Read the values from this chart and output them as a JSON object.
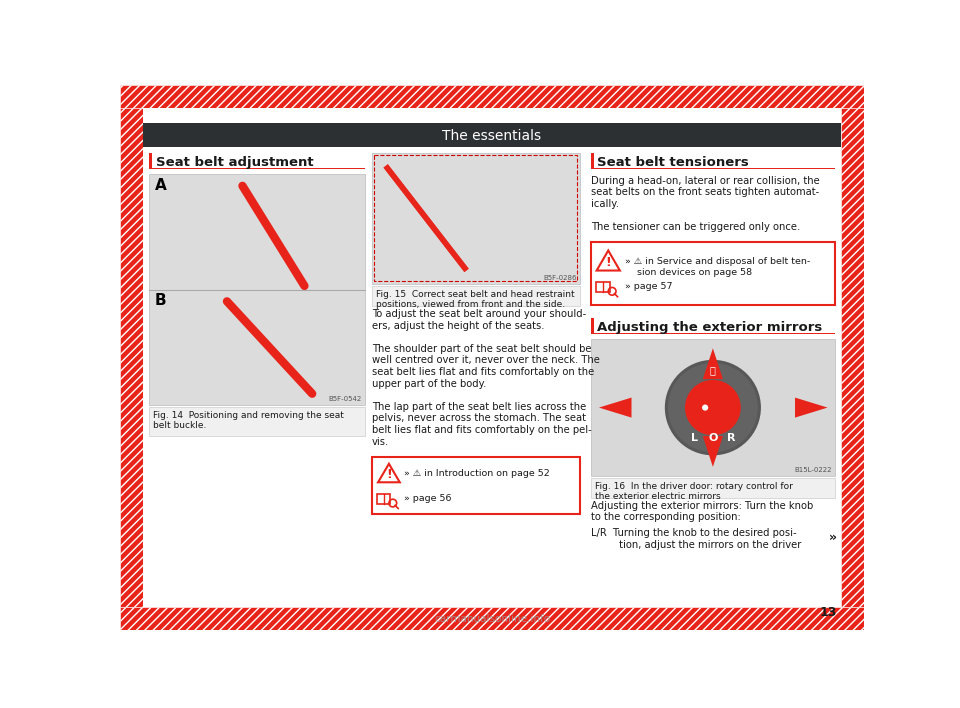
{
  "title": "The essentials",
  "title_bg": "#2d3033",
  "title_color": "#ffffff",
  "page_bg": "#ffffff",
  "hatch_color": "#e8241a",
  "border_color": "#e8241a",
  "text_color": "#1a1a1a",
  "red_color": "#e8241a",
  "section1_title": "Seat belt adjustment",
  "section2_title": "Seat belt tensioners",
  "section3_title": "Adjusting the exterior mirrors",
  "fig14_caption": "Fig. 14  Positioning and removing the seat\nbelt buckle.",
  "fig15_caption": "Fig. 15  Correct seat belt and head restraint\npositions, viewed from front and the side.",
  "fig16_caption": "Fig. 16  In the driver door: rotary control for\nthe exterior electric mirrors",
  "body_text_center": "To adjust the seat belt around your should-\ners, adjust the height of the seats.\n\nThe shoulder part of the seat belt should be\nwell centred over it, never over the neck. The\nseat belt lies flat and fits comfortably on the\nupper part of the body.\n\nThe lap part of the seat belt lies across the\npelvis, never across the stomach. The seat\nbelt lies flat and fits comfortably on the pel-\nvis.",
  "seat_belt_tensioners_body": "During a head-on, lateral or rear collision, the\nseat belts on the front seats tighten automat-\nically.\n\nThe tensioner can be triggered only once.",
  "warning_box_center_line1": "» ⚠ in Introduction on page 52",
  "warning_box_center_line2": "» page 56",
  "warning_box_right_line1": "» ⚠ in Service and disposal of belt ten-\n    sion devices on page 58",
  "warning_box_right_line2": "» page 57",
  "mirrors_text": "Adjusting the exterior mirrors: Turn the knob\nto the corresponding position:",
  "lr_text": "L/R  Turning the knob to the desired posi-\n         tion, adjust the mirrors on the driver",
  "page_number": "13",
  "arrow_right": "»",
  "fig14_code": "B5F-0542",
  "fig15_code": "B5F-0286",
  "fig16_code": "B15L-0222"
}
